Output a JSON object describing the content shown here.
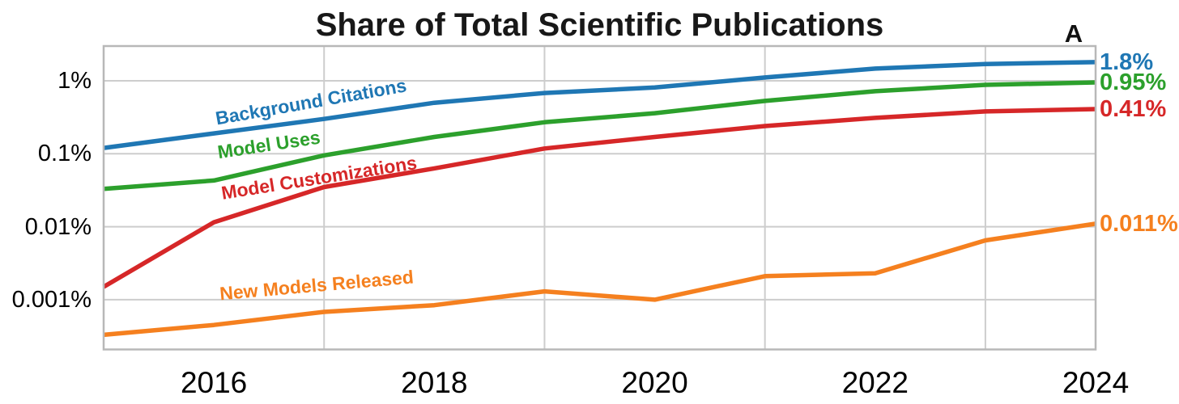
{
  "title": "Share of Total Scientific Publications",
  "panel_label": "A",
  "colors": {
    "blue": "#1f77b4",
    "green": "#2ca02c",
    "red": "#d62728",
    "orange": "#f5801f",
    "grid": "#cdcdcd",
    "axis_border": "#b8b8b8",
    "text": "#000000",
    "title_text": "#181818"
  },
  "chart_data": {
    "type": "line",
    "title": "Share of Total Scientific Publications",
    "panel_label": "A",
    "y_scale": "log",
    "y_unit": "percent",
    "xlim": [
      2015,
      2024
    ],
    "ylim_pct": [
      0.0002,
      3.0
    ],
    "grid": true,
    "legend_position": "inline-labels-on-lines",
    "x": [
      2015,
      2016,
      2017,
      2018,
      2019,
      2020,
      2021,
      2022,
      2023,
      2024
    ],
    "x_ticks": [
      2016,
      2018,
      2020,
      2022,
      2024
    ],
    "x_tick_labels": [
      "2016",
      "2018",
      "2020",
      "2022",
      "2024"
    ],
    "x_gridline_years": [
      2017,
      2019,
      2021,
      2023
    ],
    "y_ticks": [
      1,
      0.1,
      0.01,
      0.001
    ],
    "y_tick_labels": [
      "1%",
      "0.1%",
      "0.01%",
      "0.001%"
    ],
    "series": [
      {
        "name": "Background Citations",
        "color": "#1f77b4",
        "end_label": "1.8%",
        "values": [
          0.12,
          0.19,
          0.3,
          0.5,
          0.68,
          0.81,
          1.11,
          1.47,
          1.7,
          1.8
        ]
      },
      {
        "name": "Model Uses",
        "color": "#2ca02c",
        "end_label": "0.95%",
        "values": [
          0.033,
          0.043,
          0.095,
          0.17,
          0.27,
          0.36,
          0.53,
          0.72,
          0.88,
          0.95
        ]
      },
      {
        "name": "Model Customizations",
        "color": "#d62728",
        "end_label": "0.41%",
        "values": [
          0.0015,
          0.0115,
          0.035,
          0.063,
          0.118,
          0.17,
          0.24,
          0.31,
          0.38,
          0.41
        ]
      },
      {
        "name": "New Models Released",
        "color": "#f5801f",
        "end_label": "0.011%",
        "values": [
          0.00033,
          0.00045,
          0.00068,
          0.00084,
          0.0013,
          0.001,
          0.0021,
          0.0023,
          0.0065,
          0.011
        ]
      }
    ]
  }
}
